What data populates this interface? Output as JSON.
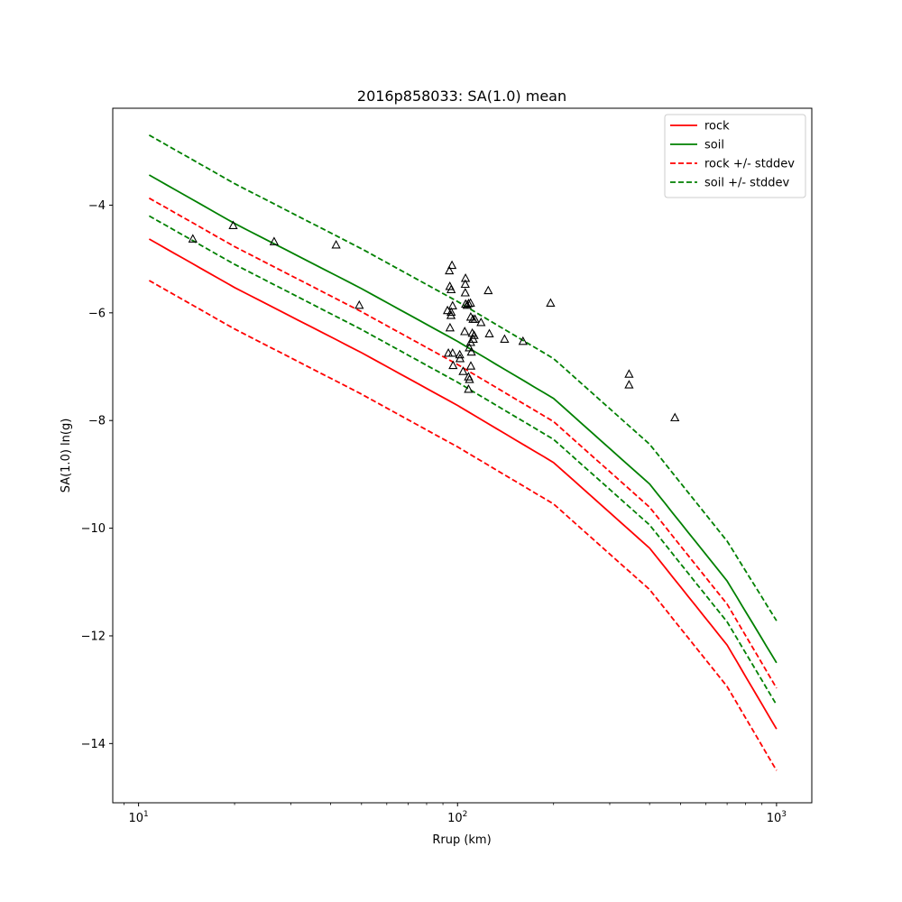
{
  "chart_data": {
    "type": "line",
    "title": "2016p858033: SA(1.0) mean",
    "xlabel": "Rrup (km)",
    "ylabel": "SA(1.0) ln(g)",
    "xscale": "log",
    "xlim": [
      8.3,
      1290
    ],
    "ylim": [
      -15.1,
      -2.2
    ],
    "xticks": [
      {
        "value": 10,
        "base": "10",
        "exp": "1"
      },
      {
        "value": 100,
        "base": "10",
        "exp": "2"
      },
      {
        "value": 1000,
        "base": "10",
        "exp": "3"
      }
    ],
    "yticks": [
      {
        "value": -4,
        "label": "−4"
      },
      {
        "value": -6,
        "label": "−6"
      },
      {
        "value": -8,
        "label": "−8"
      },
      {
        "value": -10,
        "label": "−10"
      },
      {
        "value": -12,
        "label": "−12"
      },
      {
        "value": -14,
        "label": "−14"
      }
    ],
    "legend_position": "top-right",
    "series": [
      {
        "name": "rock",
        "color": "#ff0000",
        "dash": false,
        "points": [
          [
            10.8,
            -4.63
          ],
          [
            20,
            -5.53
          ],
          [
            50,
            -6.74
          ],
          [
            100,
            -7.72
          ],
          [
            200,
            -8.78
          ],
          [
            400,
            -10.37
          ],
          [
            700,
            -12.17
          ],
          [
            1000,
            -13.73
          ]
        ]
      },
      {
        "name": "soil",
        "color": "#008000",
        "dash": false,
        "points": [
          [
            10.8,
            -3.44
          ],
          [
            20,
            -4.34
          ],
          [
            50,
            -5.55
          ],
          [
            100,
            -6.53
          ],
          [
            200,
            -7.59
          ],
          [
            400,
            -9.18
          ],
          [
            700,
            -10.98
          ],
          [
            1000,
            -12.5
          ]
        ]
      },
      {
        "name": "rock +/- stddev",
        "color": "#ff0000",
        "dash": true,
        "legend": true,
        "points": [
          [
            10.8,
            -3.87
          ],
          [
            20,
            -4.77
          ],
          [
            50,
            -5.98
          ],
          [
            100,
            -6.96
          ],
          [
            200,
            -8.02
          ],
          [
            400,
            -9.61
          ],
          [
            700,
            -11.41
          ],
          [
            1000,
            -12.97
          ]
        ]
      },
      {
        "name": "rock +/- stddev",
        "color": "#ff0000",
        "dash": true,
        "legend": false,
        "points": [
          [
            10.8,
            -5.4
          ],
          [
            20,
            -6.3
          ],
          [
            50,
            -7.51
          ],
          [
            100,
            -8.49
          ],
          [
            200,
            -9.55
          ],
          [
            400,
            -11.14
          ],
          [
            700,
            -12.94
          ],
          [
            1000,
            -14.5
          ]
        ]
      },
      {
        "name": "soil +/- stddev",
        "color": "#008000",
        "dash": true,
        "legend": true,
        "points": [
          [
            10.8,
            -2.7
          ],
          [
            20,
            -3.6
          ],
          [
            50,
            -4.81
          ],
          [
            100,
            -5.79
          ],
          [
            200,
            -6.85
          ],
          [
            400,
            -8.44
          ],
          [
            700,
            -10.24
          ],
          [
            1000,
            -11.72
          ]
        ]
      },
      {
        "name": "soil +/- stddev",
        "color": "#008000",
        "dash": true,
        "legend": false,
        "points": [
          [
            10.8,
            -4.2
          ],
          [
            20,
            -5.1
          ],
          [
            50,
            -6.31
          ],
          [
            100,
            -7.29
          ],
          [
            200,
            -8.35
          ],
          [
            400,
            -9.94
          ],
          [
            700,
            -11.74
          ],
          [
            1000,
            -13.28
          ]
        ]
      }
    ],
    "observations": {
      "marker": "triangle",
      "points": [
        [
          14.8,
          -4.63
        ],
        [
          19.8,
          -4.38
        ],
        [
          26.6,
          -4.68
        ],
        [
          41.6,
          -4.74
        ],
        [
          49.2,
          -5.86
        ],
        [
          93.0,
          -5.96
        ],
        [
          94.3,
          -5.22
        ],
        [
          94.6,
          -5.51
        ],
        [
          95.5,
          -5.57
        ],
        [
          96.1,
          -5.12
        ],
        [
          95.5,
          -5.99
        ],
        [
          95.4,
          -6.05
        ],
        [
          96.5,
          -5.87
        ],
        [
          94.7,
          -6.28
        ],
        [
          93.6,
          -6.75
        ],
        [
          96.5,
          -6.75
        ],
        [
          96.8,
          -6.98
        ],
        [
          101.6,
          -6.78
        ],
        [
          101.8,
          -6.85
        ],
        [
          104.1,
          -7.09
        ],
        [
          105.3,
          -6.35
        ],
        [
          105.9,
          -5.36
        ],
        [
          105.7,
          -5.47
        ],
        [
          105.7,
          -5.63
        ],
        [
          106.0,
          -5.84
        ],
        [
          107.2,
          -5.86
        ],
        [
          108.2,
          -5.83
        ],
        [
          109.8,
          -5.82
        ],
        [
          110.0,
          -6.08
        ],
        [
          111.8,
          -6.12
        ],
        [
          111.2,
          -6.38
        ],
        [
          112.7,
          -6.42
        ],
        [
          109.9,
          -6.55
        ],
        [
          108.9,
          -6.65
        ],
        [
          110.1,
          -6.99
        ],
        [
          108.2,
          -7.19
        ],
        [
          109.0,
          -7.24
        ],
        [
          108.2,
          -7.42
        ],
        [
          113.4,
          -6.12
        ],
        [
          124.8,
          -5.59
        ],
        [
          125.8,
          -6.39
        ],
        [
          140.4,
          -6.49
        ],
        [
          160.4,
          -6.53
        ],
        [
          195.7,
          -5.82
        ],
        [
          344.8,
          -7.14
        ],
        [
          344.8,
          -7.34
        ],
        [
          480.2,
          -7.95
        ],
        [
          118.5,
          -6.18
        ],
        [
          112.0,
          -6.49
        ],
        [
          110.5,
          -6.73
        ]
      ]
    }
  }
}
